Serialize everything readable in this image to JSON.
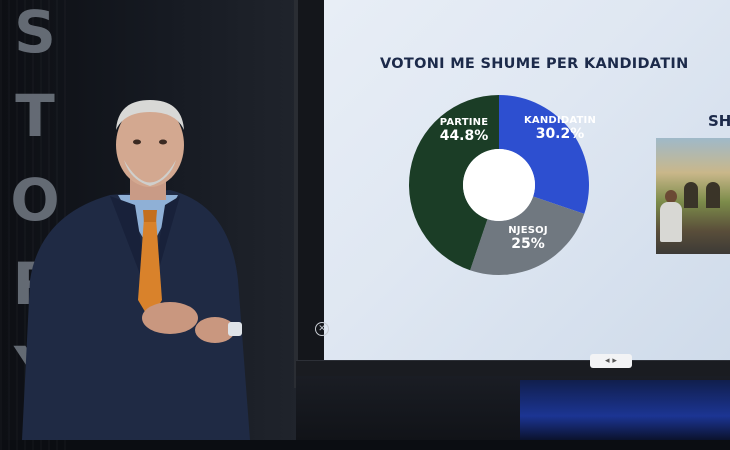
{
  "screen": {
    "title": "VOTONI ME SHUME PER KANDIDATIN",
    "side_heading": "SH"
  },
  "chart_data": {
    "type": "pie",
    "title": "VOTONI ME SHUME PER KANDIDATIN",
    "donut": true,
    "slices": [
      {
        "label": "KANDIDATIN",
        "value": 30.2,
        "display": "30.2%",
        "color": "#2d4fd0"
      },
      {
        "label": "NJESOJ",
        "value": 25,
        "display": "25%",
        "color": "#707880"
      },
      {
        "label": "PARTINE",
        "value": 44.8,
        "display": "44.8%",
        "color": "#1b3d26"
      }
    ]
  },
  "studio": {
    "wall_letters": [
      "S",
      "T",
      "O",
      "R",
      "Y"
    ]
  },
  "controls": {
    "close_glyph": "✕",
    "pager_glyph": "◂ ▸"
  }
}
